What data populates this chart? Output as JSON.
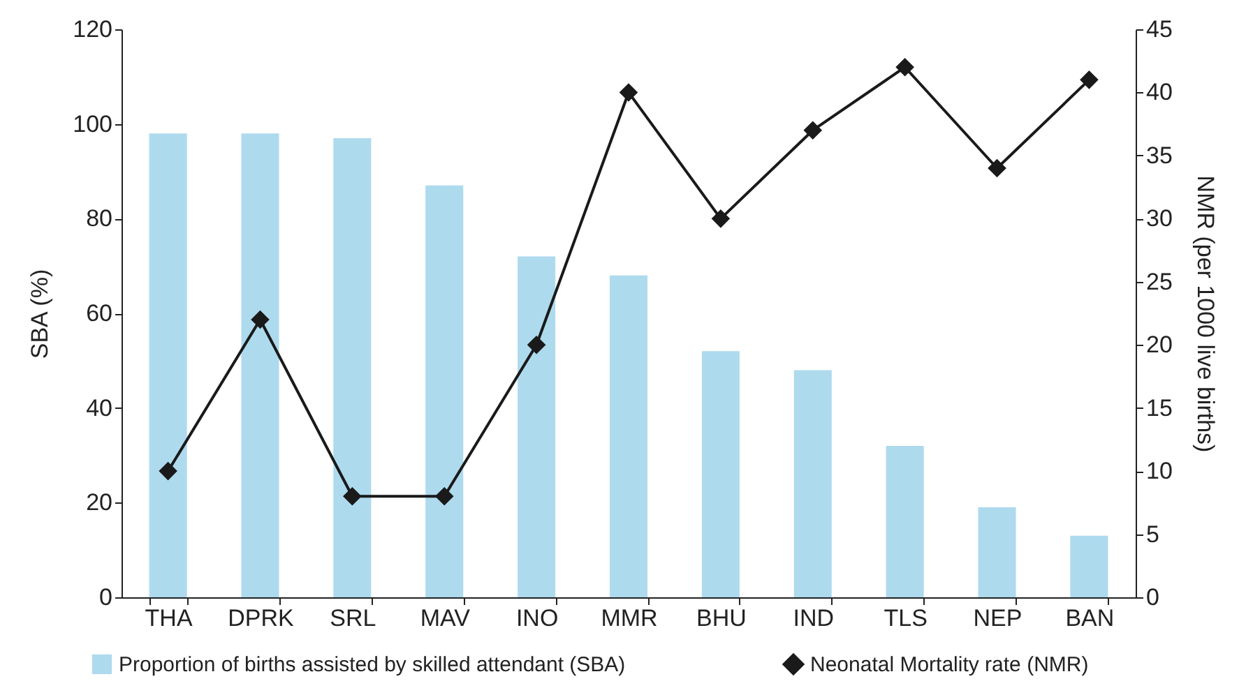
{
  "chart_data": {
    "type": "bar",
    "categories": [
      "THA",
      "DPRK",
      "SRL",
      "MAV",
      "INO",
      "MMR",
      "BHU",
      "IND",
      "TLS",
      "NEP",
      "BAN"
    ],
    "series": [
      {
        "name": "Proportion of births assisted by skilled attendant (SBA)",
        "color": "#aedaee",
        "values": [
          98,
          98,
          97,
          87,
          72,
          68,
          52,
          48,
          32,
          19,
          13
        ]
      },
      {
        "name": "Neonatal Mortality rate (NMR)",
        "type": "line",
        "axis": "y2",
        "color": "#1a1a1a",
        "values": [
          10,
          22,
          8,
          8,
          20,
          40,
          30,
          37,
          42,
          34,
          41
        ]
      }
    ],
    "ylabel": "SBA (%)",
    "y2label": "NMR (per 1000 live births)",
    "ylim": [
      0,
      120
    ],
    "yticks": [
      0,
      20,
      40,
      60,
      80,
      100,
      120
    ],
    "y2lim": [
      0,
      45
    ],
    "y2ticks": [
      0,
      5,
      10,
      15,
      20,
      25,
      30,
      35,
      40,
      45
    ],
    "marker": "diamond",
    "legend": "bottom"
  }
}
